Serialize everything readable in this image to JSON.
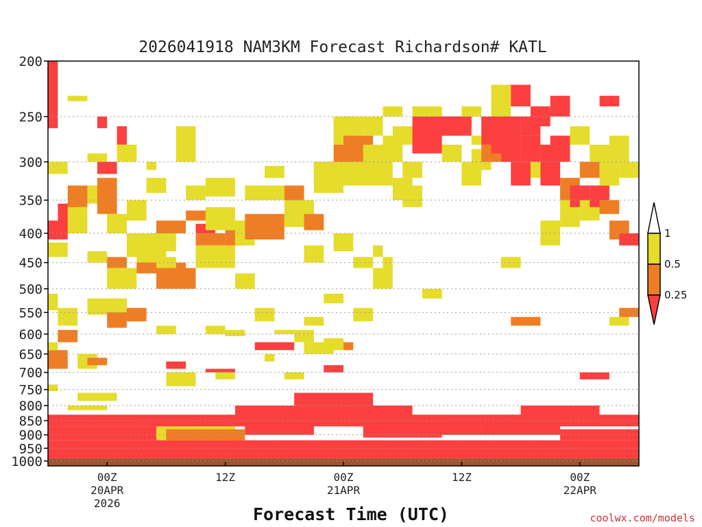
{
  "chart_data": {
    "type": "heatmap",
    "title": "2026041918 NAM3KM Forecast Richardson# KATL",
    "xlabel": "Forecast Time (UTC)",
    "ylabel": "",
    "credit": "coolwx.com/models",
    "x_ticks": [
      {
        "h": 6,
        "lines": [
          "00Z",
          "20APR",
          "2026"
        ]
      },
      {
        "h": 18,
        "lines": [
          "12Z"
        ]
      },
      {
        "h": 30,
        "lines": [
          "00Z",
          "21APR"
        ]
      },
      {
        "h": 42,
        "lines": [
          "12Z"
        ]
      },
      {
        "h": 54,
        "lines": [
          "00Z",
          "22APR"
        ]
      }
    ],
    "x_range_hours": [
      0,
      60
    ],
    "y_ticks": [
      200,
      250,
      300,
      350,
      400,
      450,
      500,
      550,
      600,
      650,
      700,
      750,
      800,
      850,
      900,
      950,
      1000
    ],
    "y_range_hpa": [
      200,
      1020
    ],
    "y_scale": "log-pressure",
    "gridlines": "dotted",
    "legend": {
      "placement": "right",
      "labels": [
        "1",
        "0.5",
        "0.25"
      ],
      "bins": [
        {
          "range": "> 1",
          "color": "#ffffff"
        },
        {
          "range": "0.5 - 1",
          "color": "#e5dc2c"
        },
        {
          "range": "0.25 - 0.5",
          "color": "#ee7e25"
        },
        {
          "range": "< 0.25",
          "color": "#fc3f3f"
        }
      ]
    },
    "ground": {
      "from_hpa": 990,
      "color": "#9c5530"
    },
    "cells": [
      [
        0,
        1,
        200,
        262,
        "red"
      ],
      [
        0,
        2,
        300,
        315,
        "yellow"
      ],
      [
        0,
        2,
        380,
        410,
        "red"
      ],
      [
        0,
        2,
        415,
        440,
        "yellow"
      ],
      [
        0,
        1,
        510,
        545,
        "yellow"
      ],
      [
        0,
        2,
        640,
        690,
        "orange"
      ],
      [
        0,
        1,
        620,
        640,
        "yellow"
      ],
      [
        0,
        1,
        735,
        755,
        "yellow"
      ],
      [
        1,
        3,
        355,
        400,
        "red"
      ],
      [
        1,
        3,
        540,
        580,
        "yellow"
      ],
      [
        1,
        3,
        590,
        620,
        "orange"
      ],
      [
        2,
        4,
        230,
        235,
        "yellow"
      ],
      [
        2,
        4,
        330,
        360,
        "orange"
      ],
      [
        2,
        4,
        360,
        400,
        "yellow"
      ],
      [
        2,
        6,
        800,
        815,
        "yellow"
      ],
      [
        4,
        6,
        290,
        300,
        "yellow"
      ],
      [
        4,
        6,
        330,
        355,
        "yellow"
      ],
      [
        4,
        6,
        430,
        450,
        "yellow"
      ],
      [
        4,
        8,
        520,
        555,
        "yellow"
      ],
      [
        3,
        5,
        650,
        690,
        "yellow"
      ],
      [
        4,
        6,
        660,
        680,
        "orange"
      ],
      [
        3,
        7,
        760,
        785,
        "yellow"
      ],
      [
        5,
        6,
        250,
        262,
        "red"
      ],
      [
        5,
        7,
        300,
        315,
        "red"
      ],
      [
        5,
        7,
        320,
        370,
        "orange"
      ],
      [
        6,
        8,
        370,
        400,
        "yellow"
      ],
      [
        6,
        8,
        440,
        460,
        "orange"
      ],
      [
        6,
        9,
        460,
        500,
        "yellow"
      ],
      [
        6,
        8,
        550,
        585,
        "orange"
      ],
      [
        7,
        8,
        260,
        280,
        "red"
      ],
      [
        7,
        9,
        280,
        300,
        "yellow"
      ],
      [
        8,
        10,
        350,
        380,
        "yellow"
      ],
      [
        8,
        12,
        400,
        440,
        "yellow"
      ],
      [
        8,
        10,
        540,
        570,
        "orange"
      ],
      [
        9,
        11,
        440,
        460,
        "yellow"
      ],
      [
        9,
        14,
        450,
        470,
        "orange"
      ],
      [
        10,
        11,
        300,
        310,
        "yellow"
      ],
      [
        10,
        12,
        320,
        340,
        "yellow"
      ],
      [
        10,
        13,
        400,
        430,
        "yellow"
      ],
      [
        11,
        14,
        380,
        400,
        "orange"
      ],
      [
        11,
        13,
        440,
        460,
        "yellow"
      ],
      [
        11,
        15,
        460,
        500,
        "orange"
      ],
      [
        11,
        13,
        580,
        600,
        "yellow"
      ],
      [
        12,
        14,
        670,
        690,
        "red"
      ],
      [
        12,
        15,
        700,
        740,
        "yellow"
      ],
      [
        13,
        15,
        260,
        300,
        "yellow"
      ],
      [
        14,
        16,
        330,
        350,
        "yellow"
      ],
      [
        14,
        17,
        365,
        380,
        "orange"
      ],
      [
        15,
        17,
        385,
        400,
        "red"
      ],
      [
        15,
        18,
        400,
        420,
        "orange"
      ],
      [
        15,
        19,
        420,
        460,
        "yellow"
      ],
      [
        16,
        19,
        320,
        345,
        "yellow"
      ],
      [
        16,
        19,
        360,
        395,
        "yellow"
      ],
      [
        16,
        18,
        580,
        600,
        "yellow"
      ],
      [
        16,
        19,
        690,
        700,
        "red"
      ],
      [
        17,
        19,
        700,
        720,
        "yellow"
      ],
      [
        18,
        20,
        395,
        420,
        "orange"
      ],
      [
        18,
        20,
        590,
        605,
        "yellow"
      ],
      [
        19,
        21,
        380,
        420,
        "yellow"
      ],
      [
        19,
        21,
        470,
        500,
        "yellow"
      ],
      [
        20,
        22,
        330,
        350,
        "yellow"
      ],
      [
        20,
        24,
        370,
        410,
        "orange"
      ],
      [
        21,
        23,
        540,
        570,
        "yellow"
      ],
      [
        21,
        25,
        620,
        640,
        "red"
      ],
      [
        22,
        24,
        305,
        320,
        "yellow"
      ],
      [
        22,
        24,
        330,
        350,
        "yellow"
      ],
      [
        22,
        23,
        650,
        670,
        "yellow"
      ],
      [
        23,
        25,
        590,
        600,
        "yellow"
      ],
      [
        24,
        26,
        330,
        350,
        "orange"
      ],
      [
        24,
        27,
        350,
        390,
        "yellow"
      ],
      [
        24,
        26,
        700,
        720,
        "yellow"
      ],
      [
        25,
        27,
        590,
        620,
        "yellow"
      ],
      [
        26,
        28,
        370,
        395,
        "orange"
      ],
      [
        26,
        28,
        420,
        450,
        "yellow"
      ],
      [
        26,
        28,
        560,
        580,
        "yellow"
      ],
      [
        26,
        29,
        620,
        650,
        "yellow"
      ],
      [
        27,
        29,
        300,
        330,
        "orange"
      ],
      [
        27,
        30,
        300,
        340,
        "yellow"
      ],
      [
        28,
        30,
        510,
        530,
        "yellow"
      ],
      [
        28,
        30,
        610,
        640,
        "yellow"
      ],
      [
        28,
        30,
        680,
        700,
        "red"
      ],
      [
        29,
        31,
        250,
        280,
        "yellow"
      ],
      [
        29,
        31,
        280,
        300,
        "orange"
      ],
      [
        29,
        31,
        400,
        430,
        "yellow"
      ],
      [
        30,
        32,
        250,
        270,
        "yellow"
      ],
      [
        30,
        33,
        270,
        300,
        "orange"
      ],
      [
        30,
        33,
        300,
        330,
        "yellow"
      ],
      [
        30,
        31,
        620,
        640,
        "orange"
      ],
      [
        31,
        33,
        440,
        460,
        "yellow"
      ],
      [
        31,
        33,
        540,
        570,
        "yellow"
      ],
      [
        32,
        34,
        250,
        270,
        "yellow"
      ],
      [
        32,
        34,
        280,
        300,
        "yellow"
      ],
      [
        32,
        35,
        300,
        330,
        "yellow"
      ],
      [
        33,
        34,
        420,
        440,
        "yellow"
      ],
      [
        33,
        35,
        460,
        500,
        "yellow"
      ],
      [
        34,
        36,
        240,
        250,
        "yellow"
      ],
      [
        34,
        36,
        270,
        300,
        "yellow"
      ],
      [
        34,
        35,
        440,
        460,
        "yellow"
      ],
      [
        35,
        37,
        260,
        280,
        "yellow"
      ],
      [
        35,
        37,
        320,
        350,
        "yellow"
      ],
      [
        36,
        38,
        300,
        320,
        "yellow"
      ],
      [
        36,
        38,
        330,
        360,
        "yellow"
      ],
      [
        37,
        38,
        250,
        270,
        "yellow"
      ],
      [
        37,
        39,
        270,
        290,
        "orange"
      ],
      [
        37,
        40,
        250,
        290,
        "red"
      ],
      [
        37,
        40,
        240,
        250,
        "yellow"
      ],
      [
        38,
        40,
        500,
        520,
        "yellow"
      ],
      [
        39,
        42,
        250,
        270,
        "red"
      ],
      [
        40,
        43,
        250,
        270,
        "red"
      ],
      [
        40,
        42,
        280,
        300,
        "yellow"
      ],
      [
        41,
        43,
        250,
        260,
        "red"
      ],
      [
        42,
        44,
        300,
        330,
        "yellow"
      ],
      [
        42,
        44,
        240,
        250,
        "yellow"
      ],
      [
        43,
        45,
        270,
        280,
        "yellow"
      ],
      [
        43,
        45,
        285,
        310,
        "yellow"
      ],
      [
        44,
        46,
        250,
        280,
        "red"
      ],
      [
        44,
        46,
        280,
        300,
        "orange"
      ],
      [
        45,
        47,
        220,
        250,
        "yellow"
      ],
      [
        45,
        48,
        250,
        290,
        "red"
      ],
      [
        46,
        48,
        260,
        300,
        "red"
      ],
      [
        46,
        48,
        440,
        460,
        "yellow"
      ],
      [
        47,
        49,
        220,
        240,
        "red"
      ],
      [
        47,
        49,
        300,
        330,
        "red"
      ],
      [
        47,
        50,
        560,
        580,
        "orange"
      ],
      [
        48,
        50,
        250,
        270,
        "red"
      ],
      [
        48,
        50,
        270,
        300,
        "red"
      ],
      [
        49,
        51,
        240,
        260,
        "red"
      ],
      [
        49,
        51,
        300,
        320,
        "yellow"
      ],
      [
        50,
        52,
        280,
        330,
        "red"
      ],
      [
        50,
        52,
        380,
        420,
        "yellow"
      ],
      [
        51,
        53,
        230,
        250,
        "red"
      ],
      [
        51,
        53,
        270,
        300,
        "red"
      ],
      [
        52,
        54,
        320,
        350,
        "orange"
      ],
      [
        52,
        54,
        350,
        390,
        "yellow"
      ],
      [
        53,
        55,
        260,
        280,
        "yellow"
      ],
      [
        53,
        55,
        330,
        360,
        "red"
      ],
      [
        54,
        56,
        300,
        320,
        "orange"
      ],
      [
        54,
        56,
        350,
        380,
        "yellow"
      ],
      [
        54,
        57,
        700,
        720,
        "red"
      ],
      [
        55,
        57,
        330,
        360,
        "red"
      ],
      [
        55,
        57,
        280,
        300,
        "yellow"
      ],
      [
        56,
        58,
        230,
        240,
        "red"
      ],
      [
        56,
        58,
        300,
        330,
        "yellow"
      ],
      [
        56,
        58,
        350,
        370,
        "orange"
      ],
      [
        57,
        59,
        270,
        300,
        "yellow"
      ],
      [
        57,
        59,
        380,
        410,
        "orange"
      ],
      [
        57,
        59,
        560,
        580,
        "yellow"
      ],
      [
        58,
        60,
        300,
        320,
        "yellow"
      ],
      [
        58,
        60,
        400,
        420,
        "red"
      ],
      [
        58,
        60,
        540,
        560,
        "orange"
      ],
      [
        0,
        60,
        830,
        850,
        "red"
      ],
      [
        0,
        60,
        850,
        870,
        "red"
      ],
      [
        0,
        12,
        870,
        920,
        "red"
      ],
      [
        0,
        60,
        920,
        990,
        "red"
      ],
      [
        11,
        19,
        870,
        920,
        "yellow"
      ],
      [
        19,
        30,
        800,
        860,
        "red"
      ],
      [
        25,
        33,
        760,
        800,
        "red"
      ],
      [
        30,
        37,
        800,
        870,
        "red"
      ],
      [
        37,
        44,
        840,
        900,
        "red"
      ],
      [
        44,
        52,
        830,
        900,
        "red"
      ],
      [
        52,
        60,
        880,
        920,
        "red"
      ],
      [
        20,
        27,
        860,
        900,
        "red"
      ],
      [
        32,
        40,
        860,
        910,
        "red"
      ],
      [
        48,
        56,
        800,
        850,
        "red"
      ],
      [
        12,
        20,
        880,
        920,
        "orange"
      ]
    ]
  }
}
